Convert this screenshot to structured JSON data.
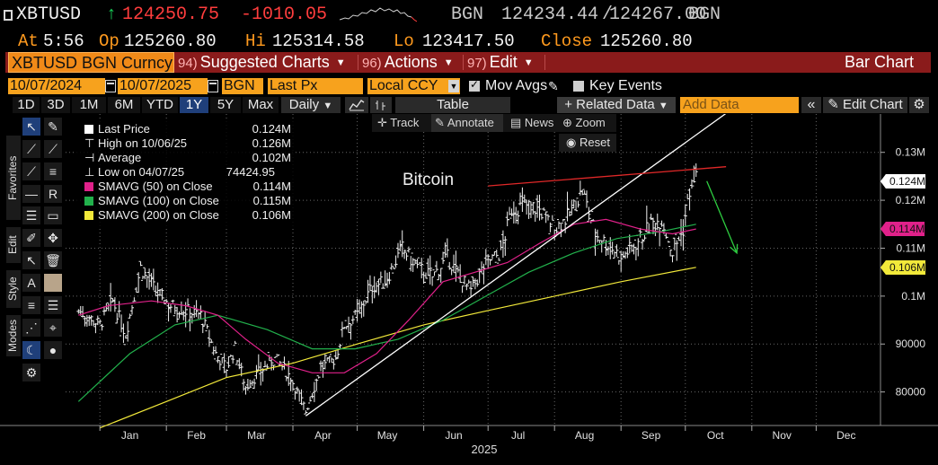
{
  "header": {
    "symbol": "XBTUSD",
    "last_price": "124250.75",
    "change": "-1010.05",
    "source1": "BGN",
    "bid": "124234.44",
    "ask": "124267.00",
    "source2": "BGN",
    "time_label": "At",
    "time": "5:56",
    "open_label": "Op",
    "open": "125260.80",
    "high_label": "Hi",
    "high": "125314.58",
    "low_label": "Lo",
    "low": "123417.50",
    "close_label": "Close",
    "close": "125260.80"
  },
  "menubar": {
    "ticker": "XBTUSD BGN Curncy",
    "items": [
      {
        "num": "94)",
        "label": "Suggested Charts"
      },
      {
        "num": "96)",
        "label": "Actions"
      },
      {
        "num": "97)",
        "label": "Edit"
      }
    ],
    "chart_type": "Bar Chart"
  },
  "daterow": {
    "start_date": "10/07/2024",
    "end_date": "10/07/2025",
    "source": "BGN",
    "field": "Last Px",
    "currency": "Local CCY",
    "mov_avgs": "Mov Avgs",
    "key_events": "Key Events"
  },
  "toolbar": {
    "periods": [
      "1D",
      "3D",
      "1M",
      "6M",
      "YTD",
      "1Y",
      "5Y",
      "Max"
    ],
    "selected_period": "1Y",
    "frequency": "Daily",
    "table": "Table",
    "related_data": "+ Related Data",
    "add_data_placeholder": "Add Data",
    "edit_chart": "Edit Chart"
  },
  "left_tabs": [
    "Favorites",
    "Edit",
    "Style",
    "Modes"
  ],
  "chart_tools": {
    "track": "Track",
    "annotate": "Annotate",
    "news": "News",
    "zoom": "Zoom",
    "reset": "Reset"
  },
  "legend": [
    {
      "label": "Last Price",
      "value": "0.124M",
      "color": "#ffffff"
    },
    {
      "label": "High on 10/06/25",
      "value": "0.126M"
    },
    {
      "label": "Average",
      "value": "0.102M"
    },
    {
      "label": "Low on 04/07/25",
      "value": "74424.95"
    },
    {
      "label": "SMAVG (50)  on Close",
      "value": "0.114M",
      "color": "#e0218a"
    },
    {
      "label": "SMAVG (100)  on Close",
      "value": "0.115M",
      "color": "#22b14c"
    },
    {
      "label": "SMAVG (200)  on Close",
      "value": "0.106M",
      "color": "#f2e93a"
    }
  ],
  "chart_data": {
    "type": "bar",
    "annotation_text": "Bitcoin",
    "y_ticks": [
      80000,
      90000,
      100000,
      110000,
      120000,
      130000
    ],
    "y_tick_labels": [
      "80000",
      "90000",
      "0.1M",
      "0.11M",
      "0.12M",
      "0.13M"
    ],
    "x_tick_labels": [
      "Jan",
      "Feb",
      "Mar",
      "Apr",
      "May",
      "Jun",
      "Jul",
      "Aug",
      "Sep",
      "Oct",
      "Nov",
      "Dec"
    ],
    "x_year_label": "2025",
    "ylim": [
      73000,
      138000
    ],
    "price_tags": [
      {
        "label": "0.124M",
        "value": 124000,
        "bg": "#ffffff"
      },
      {
        "label": "0.114M",
        "value": 114000,
        "bg": "#e0218a"
      },
      {
        "label": "0.106M",
        "value": 106000,
        "bg": "#f2e93a"
      }
    ],
    "price_path": [
      [
        "2024-12-22",
        97000
      ],
      [
        "2025-01-01",
        94000
      ],
      [
        "2025-01-07",
        99000
      ],
      [
        "2025-01-13",
        92000
      ],
      [
        "2025-01-20",
        106000
      ],
      [
        "2025-01-27",
        101000
      ],
      [
        "2025-02-03",
        98000
      ],
      [
        "2025-02-10",
        97000
      ],
      [
        "2025-02-17",
        96000
      ],
      [
        "2025-02-24",
        88000
      ],
      [
        "2025-03-01",
        85000
      ],
      [
        "2025-03-05",
        89000
      ],
      [
        "2025-03-10",
        81000
      ],
      [
        "2025-03-16",
        84000
      ],
      [
        "2025-03-24",
        87000
      ],
      [
        "2025-03-31",
        83000
      ],
      [
        "2025-04-07",
        76000
      ],
      [
        "2025-04-14",
        85000
      ],
      [
        "2025-04-21",
        87000
      ],
      [
        "2025-04-25",
        94000
      ],
      [
        "2025-05-01",
        96000
      ],
      [
        "2025-05-08",
        102000
      ],
      [
        "2025-05-14",
        103000
      ],
      [
        "2025-05-22",
        110000
      ],
      [
        "2025-05-29",
        106000
      ],
      [
        "2025-06-05",
        104000
      ],
      [
        "2025-06-12",
        108000
      ],
      [
        "2025-06-18",
        104000
      ],
      [
        "2025-06-23",
        101000
      ],
      [
        "2025-06-30",
        107000
      ],
      [
        "2025-07-07",
        109000
      ],
      [
        "2025-07-12",
        118000
      ],
      [
        "2025-07-18",
        119000
      ],
      [
        "2025-07-25",
        118000
      ],
      [
        "2025-08-01",
        114000
      ],
      [
        "2025-08-08",
        117000
      ],
      [
        "2025-08-14",
        122000
      ],
      [
        "2025-08-20",
        113000
      ],
      [
        "2025-08-28",
        110000
      ],
      [
        "2025-09-01",
        108000
      ],
      [
        "2025-09-08",
        111000
      ],
      [
        "2025-09-15",
        115000
      ],
      [
        "2025-09-20",
        116000
      ],
      [
        "2025-09-25",
        109000
      ],
      [
        "2025-09-30",
        114000
      ],
      [
        "2025-10-03",
        122000
      ],
      [
        "2025-10-06",
        125000
      ]
    ],
    "sma50": [
      [
        "2024-12-22",
        96000
      ],
      [
        "2025-01-05",
        98000
      ],
      [
        "2025-01-25",
        99000
      ],
      [
        "2025-02-10",
        98000
      ],
      [
        "2025-02-25",
        96000
      ],
      [
        "2025-03-10",
        91000
      ],
      [
        "2025-03-25",
        86000
      ],
      [
        "2025-04-10",
        84000
      ],
      [
        "2025-04-25",
        84000
      ],
      [
        "2025-05-10",
        88000
      ],
      [
        "2025-05-25",
        95000
      ],
      [
        "2025-06-10",
        103000
      ],
      [
        "2025-06-25",
        105000
      ],
      [
        "2025-07-10",
        107000
      ],
      [
        "2025-07-25",
        111000
      ],
      [
        "2025-08-10",
        115000
      ],
      [
        "2025-08-25",
        116000
      ],
      [
        "2025-09-10",
        114000
      ],
      [
        "2025-09-25",
        113000
      ],
      [
        "2025-10-06",
        114000
      ]
    ],
    "sma100": [
      [
        "2024-12-22",
        78000
      ],
      [
        "2025-01-15",
        88000
      ],
      [
        "2025-02-05",
        94000
      ],
      [
        "2025-02-25",
        96000
      ],
      [
        "2025-03-20",
        93000
      ],
      [
        "2025-04-10",
        89000
      ],
      [
        "2025-04-30",
        89000
      ],
      [
        "2025-05-20",
        91000
      ],
      [
        "2025-06-10",
        95000
      ],
      [
        "2025-06-30",
        100000
      ],
      [
        "2025-07-20",
        105000
      ],
      [
        "2025-08-10",
        109000
      ],
      [
        "2025-08-30",
        112000
      ],
      [
        "2025-09-20",
        113500
      ],
      [
        "2025-10-06",
        115000
      ]
    ],
    "sma200": [
      [
        "2025-01-01",
        72500
      ],
      [
        "2025-02-01",
        78000
      ],
      [
        "2025-03-01",
        83000
      ],
      [
        "2025-04-01",
        86000
      ],
      [
        "2025-05-01",
        90000
      ],
      [
        "2025-06-01",
        94000
      ],
      [
        "2025-07-01",
        97000
      ],
      [
        "2025-08-01",
        100000
      ],
      [
        "2025-09-01",
        103000
      ],
      [
        "2025-10-06",
        106000
      ]
    ],
    "trendline_white": [
      [
        "2025-04-07",
        75000
      ],
      [
        "2025-11-01",
        142000
      ]
    ],
    "resistance_red": [
      [
        "2025-07-01",
        123000
      ],
      [
        "2025-10-20",
        127000
      ]
    ],
    "projection_green": [
      [
        "2025-10-11",
        124000
      ],
      [
        "2025-10-25",
        109000
      ]
    ]
  }
}
